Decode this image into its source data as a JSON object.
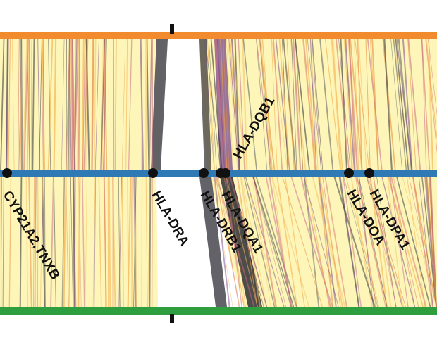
{
  "diagram": {
    "colors": {
      "background": "#ffffff",
      "band_fill": "#fdf6b8",
      "top_track": "#f28a2e",
      "middle_track": "#2f7ab5",
      "bottom_track": "#2e9e3e",
      "marker": "#111111",
      "link_palette": [
        "#f4a640",
        "#e88a3a",
        "#c96a8a",
        "#7a4a8c",
        "#5a5a60",
        "#2e2e34",
        "#f6c26a",
        "#d9736b"
      ]
    },
    "tracks": [
      {
        "id": "top",
        "color_key": "top_track"
      },
      {
        "id": "middle",
        "color_key": "middle_track"
      },
      {
        "id": "bottom",
        "color_key": "bottom_track"
      }
    ],
    "gene_markers": [
      {
        "label": "CYP21A2,TNXB",
        "label_side": "below"
      },
      {
        "label": "HLA-DRA",
        "label_side": "below"
      },
      {
        "label": "HLA-DRB1",
        "label_side": "below"
      },
      {
        "label": "HLA-DQB1",
        "label_side": "above"
      },
      {
        "label": "HLA-DQA1",
        "label_side": "below"
      },
      {
        "label": "HLA-DOA",
        "label_side": "below"
      },
      {
        "label": "HLA-DPA1",
        "label_side": "below"
      }
    ],
    "tick_marks": [
      "top-axis-tick",
      "bottom-axis-tick"
    ]
  }
}
